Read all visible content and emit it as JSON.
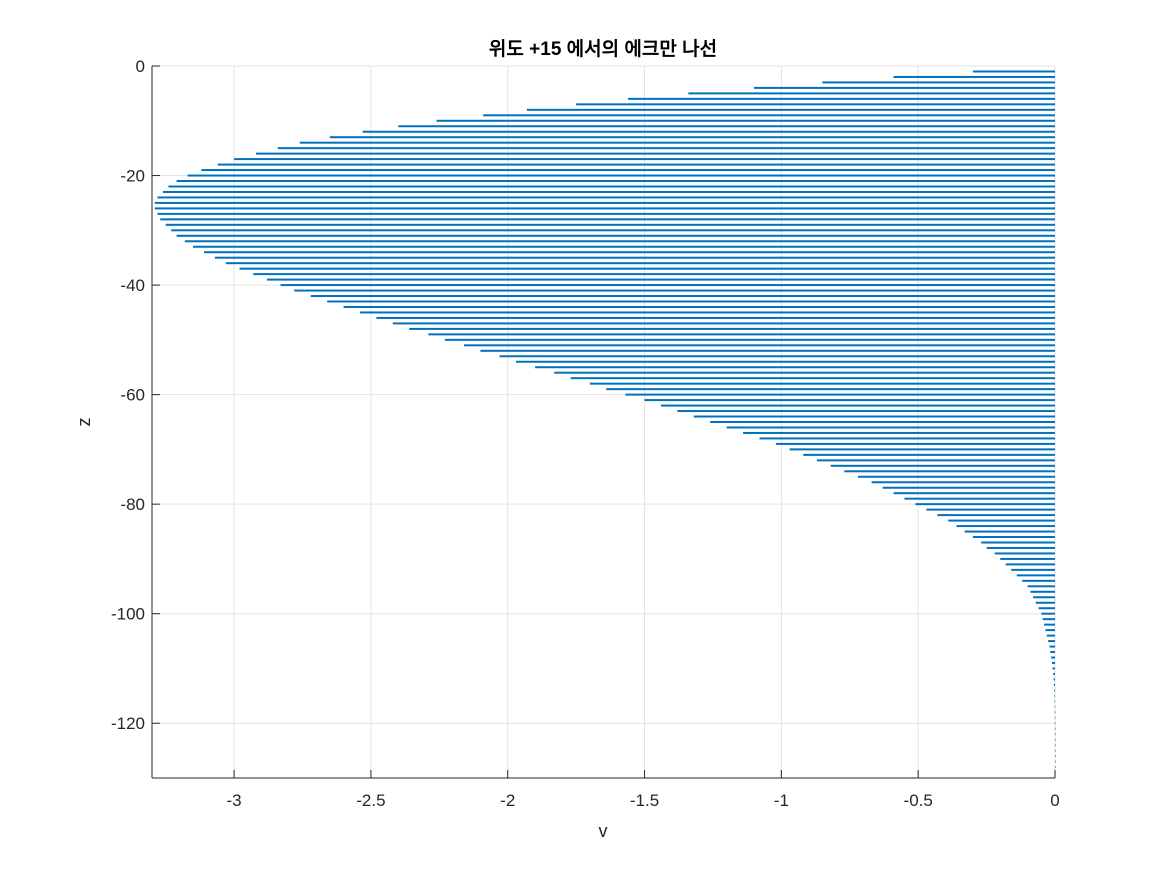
{
  "chart_data": {
    "type": "bar",
    "orientation": "horizontal",
    "title": "위도 +15 에서의 에크만 나선",
    "xlabel": "v",
    "ylabel": "z",
    "xlim": [
      -3.3,
      0
    ],
    "ylim": [
      -130,
      0
    ],
    "xticks": [
      -3,
      -2.5,
      -2,
      -1.5,
      -1,
      -0.5,
      0
    ],
    "xtick_labels": [
      "-3",
      "-2.5",
      "-2",
      "-1.5",
      "-1",
      "-0.5",
      "0"
    ],
    "yticks": [
      0,
      -20,
      -40,
      -60,
      -80,
      -100,
      -120
    ],
    "ytick_labels": [
      "0",
      "-20",
      "-40",
      "-60",
      "-80",
      "-100",
      "-120"
    ],
    "grid": true,
    "bar_color": "#0072BD",
    "series": [
      {
        "z": [
          -1,
          -2,
          -3,
          -4,
          -5,
          -6,
          -7,
          -8,
          -9,
          -10,
          -11,
          -12,
          -13,
          -14,
          -15,
          -16,
          -17,
          -18,
          -19,
          -20,
          -21,
          -22,
          -23,
          -24,
          -25,
          -26,
          -27,
          -28,
          -29,
          -30,
          -31,
          -32,
          -33,
          -34,
          -35,
          -36,
          -37,
          -38,
          -39,
          -40,
          -41,
          -42,
          -43,
          -44,
          -45,
          -46,
          -47,
          -48,
          -49,
          -50,
          -51,
          -52,
          -53,
          -54,
          -55,
          -56,
          -57,
          -58,
          -59,
          -60,
          -61,
          -62,
          -63,
          -64,
          -65,
          -66,
          -67,
          -68,
          -69,
          -70,
          -71,
          -72,
          -73,
          -74,
          -75,
          -76,
          -77,
          -78,
          -79,
          -80,
          -81,
          -82,
          -83,
          -84,
          -85,
          -86,
          -87,
          -88,
          -89,
          -90,
          -91,
          -92,
          -93,
          -94,
          -95,
          -96,
          -97,
          -98,
          -99,
          -100,
          -101,
          -102,
          -103,
          -104,
          -105,
          -106,
          -107,
          -108,
          -109,
          -110,
          -111,
          -112,
          -113,
          -114,
          -115,
          -116,
          -117,
          -118,
          -119,
          -120,
          -121,
          -122,
          -123,
          -124,
          -125,
          -126,
          -127,
          -128,
          -129
        ],
        "v": [
          -0.3,
          -0.59,
          -0.85,
          -1.1,
          -1.34,
          -1.56,
          -1.75,
          -1.93,
          -2.09,
          -2.26,
          -2.4,
          -2.53,
          -2.65,
          -2.76,
          -2.84,
          -2.92,
          -3.0,
          -3.06,
          -3.12,
          -3.17,
          -3.21,
          -3.24,
          -3.26,
          -3.28,
          -3.29,
          -3.29,
          -3.28,
          -3.27,
          -3.25,
          -3.23,
          -3.21,
          -3.18,
          -3.15,
          -3.11,
          -3.07,
          -3.03,
          -2.98,
          -2.93,
          -2.88,
          -2.83,
          -2.78,
          -2.72,
          -2.66,
          -2.6,
          -2.54,
          -2.48,
          -2.42,
          -2.36,
          -2.29,
          -2.23,
          -2.16,
          -2.1,
          -2.03,
          -1.97,
          -1.9,
          -1.83,
          -1.77,
          -1.7,
          -1.64,
          -1.57,
          -1.5,
          -1.44,
          -1.38,
          -1.32,
          -1.26,
          -1.2,
          -1.14,
          -1.08,
          -1.02,
          -0.97,
          -0.92,
          -0.87,
          -0.82,
          -0.77,
          -0.72,
          -0.67,
          -0.63,
          -0.59,
          -0.55,
          -0.51,
          -0.47,
          -0.43,
          -0.39,
          -0.36,
          -0.33,
          -0.3,
          -0.27,
          -0.25,
          -0.22,
          -0.2,
          -0.18,
          -0.16,
          -0.14,
          -0.12,
          -0.1,
          -0.09,
          -0.08,
          -0.07,
          -0.06,
          -0.05,
          -0.045,
          -0.04,
          -0.035,
          -0.03,
          -0.025,
          -0.02,
          -0.017,
          -0.014,
          -0.011,
          -0.009,
          -0.007,
          -0.005,
          -0.004,
          -0.003,
          -0.002,
          -0.0015,
          -0.001,
          -0.0008,
          -0.0006,
          -0.0004,
          -0.0003,
          -0.0002,
          -0.00015,
          -0.0001,
          -8e-05,
          -5e-05,
          -3e-05,
          -2e-05,
          -1e-05
        ]
      }
    ]
  }
}
